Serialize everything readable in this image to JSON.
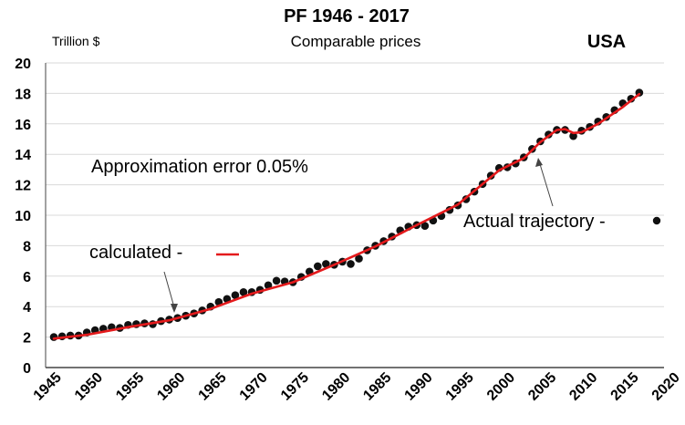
{
  "chart_data": {
    "type": "line",
    "title": "PF 1946 - 2017",
    "subtitle": "Comparable prices",
    "country": "USA",
    "ylabel": "Trillion $",
    "xlim": [
      1945,
      2020
    ],
    "ylim": [
      0,
      20
    ],
    "x_ticks": [
      1945,
      1950,
      1955,
      1960,
      1965,
      1970,
      1975,
      1980,
      1985,
      1990,
      1995,
      2000,
      2005,
      2010,
      2015,
      2020
    ],
    "y_ticks": [
      0,
      2,
      4,
      6,
      8,
      10,
      12,
      14,
      16,
      18,
      20
    ],
    "grid": "horizontal",
    "series": [
      {
        "name": "Actual trajectory -",
        "style": "dots",
        "color": "#111111",
        "x": [
          1946,
          1947,
          1948,
          1949,
          1950,
          1951,
          1952,
          1953,
          1954,
          1955,
          1956,
          1957,
          1958,
          1959,
          1960,
          1961,
          1962,
          1963,
          1964,
          1965,
          1966,
          1967,
          1968,
          1969,
          1970,
          1971,
          1972,
          1973,
          1974,
          1975,
          1976,
          1977,
          1978,
          1979,
          1980,
          1981,
          1982,
          1983,
          1984,
          1985,
          1986,
          1987,
          1988,
          1989,
          1990,
          1991,
          1992,
          1993,
          1994,
          1995,
          1996,
          1997,
          1998,
          1999,
          2000,
          2001,
          2002,
          2003,
          2004,
          2005,
          2006,
          2007,
          2008,
          2009,
          2010,
          2011,
          2012,
          2013,
          2014,
          2015,
          2016,
          2017
        ],
        "y": [
          2.0,
          2.05,
          2.1,
          2.1,
          2.3,
          2.45,
          2.55,
          2.65,
          2.6,
          2.8,
          2.85,
          2.9,
          2.85,
          3.05,
          3.15,
          3.25,
          3.4,
          3.55,
          3.75,
          4.0,
          4.3,
          4.5,
          4.75,
          4.95,
          4.95,
          5.1,
          5.4,
          5.7,
          5.65,
          5.6,
          5.95,
          6.3,
          6.65,
          6.8,
          6.75,
          6.95,
          6.8,
          7.15,
          7.7,
          8.0,
          8.3,
          8.6,
          9.0,
          9.25,
          9.35,
          9.3,
          9.65,
          9.95,
          10.35,
          10.65,
          11.05,
          11.55,
          12.05,
          12.6,
          13.1,
          13.15,
          13.4,
          13.8,
          14.35,
          14.85,
          15.3,
          15.6,
          15.6,
          15.2,
          15.55,
          15.8,
          16.15,
          16.45,
          16.9,
          17.35,
          17.65,
          18.05
        ]
      },
      {
        "name": "calculated -",
        "style": "line",
        "color": "#e41a1c",
        "x": [
          1946,
          1950,
          1955,
          1960,
          1965,
          1970,
          1975,
          1980,
          1985,
          1990,
          1995,
          2000,
          2003,
          2005,
          2007,
          2008,
          2009,
          2010,
          2012,
          2015,
          2017
        ],
        "y": [
          1.9,
          2.15,
          2.65,
          3.1,
          3.85,
          4.85,
          5.6,
          6.75,
          7.95,
          9.35,
          10.7,
          12.95,
          13.75,
          14.8,
          15.6,
          15.65,
          15.4,
          15.45,
          16.0,
          17.1,
          17.95
        ]
      }
    ],
    "annotations": {
      "error": "Approximation error 0.05%",
      "calculated_label": "calculated -",
      "actual_label": "Actual trajectory -"
    }
  }
}
